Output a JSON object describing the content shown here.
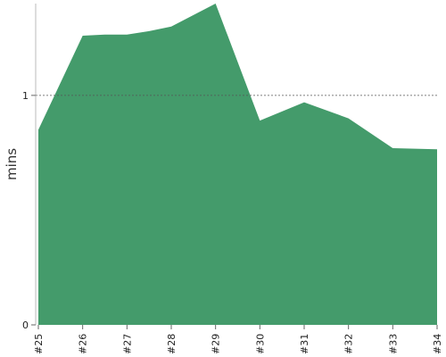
{
  "chart_data": {
    "type": "area",
    "ylabel": "mins",
    "xlabel": "",
    "title": "",
    "ylim": [
      0,
      1.4
    ],
    "yticks": [
      0,
      1
    ],
    "reference_line": 1,
    "x_labels": [
      "#25",
      "#26",
      "#27",
      "#28",
      "#29",
      "#30",
      "#31",
      "#32",
      "#33",
      "#34"
    ],
    "x": [
      25,
      26,
      26.5,
      27,
      27.5,
      28,
      29,
      30,
      31,
      32,
      33,
      34
    ],
    "values": [
      0.85,
      1.26,
      1.265,
      1.265,
      1.28,
      1.3,
      1.4,
      0.89,
      0.97,
      0.9,
      0.77,
      0.765
    ],
    "fill_color": "#449b6b",
    "reference_line_color": "#555555",
    "grid": false,
    "legend": "none"
  }
}
